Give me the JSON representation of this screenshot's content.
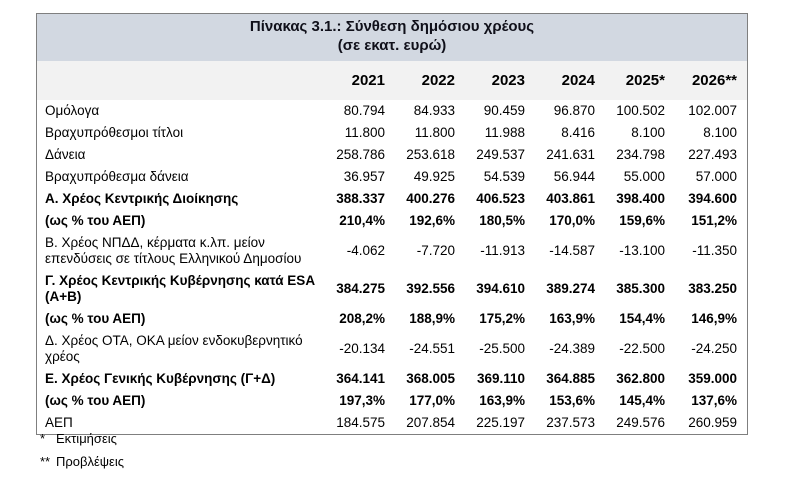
{
  "table": {
    "title_line1": "Πίνακας 3.1.: Σύνθεση δημόσιου χρέους",
    "title_line2": "(σε εκατ. ευρώ)",
    "columns": [
      "2021",
      "2022",
      "2023",
      "2024",
      "2025*",
      "2026**"
    ],
    "rows": [
      {
        "label": "Ομόλογα",
        "bold": false,
        "values": [
          "80.794",
          "84.933",
          "90.459",
          "96.870",
          "100.502",
          "102.007"
        ]
      },
      {
        "label": "Βραχυπρόθεσμοι τίτλοι",
        "bold": false,
        "values": [
          "11.800",
          "11.800",
          "11.988",
          "8.416",
          "8.100",
          "8.100"
        ]
      },
      {
        "label": "Δάνεια",
        "bold": false,
        "values": [
          "258.786",
          "253.618",
          "249.537",
          "241.631",
          "234.798",
          "227.493"
        ]
      },
      {
        "label": "Βραχυπρόθεσμα δάνεια",
        "bold": false,
        "values": [
          "36.957",
          "49.925",
          "54.539",
          "56.944",
          "55.000",
          "57.000"
        ]
      },
      {
        "label": "Α. Χρέος Κεντρικής Διοίκησης",
        "bold": true,
        "values": [
          "388.337",
          "400.276",
          "406.523",
          "403.861",
          "398.400",
          "394.600"
        ]
      },
      {
        "label": "(ως % του ΑΕΠ)",
        "bold": true,
        "values": [
          "210,4%",
          "192,6%",
          "180,5%",
          "170,0%",
          "159,6%",
          "151,2%"
        ]
      },
      {
        "label": "Β. Χρέος ΝΠΔΔ, κέρματα κ.λπ. μείον επενδύσεις σε τίτλους Ελληνικού Δημοσίου",
        "bold": false,
        "values": [
          "-4.062",
          "-7.720",
          "-11.913",
          "-14.587",
          "-13.100",
          "-11.350"
        ]
      },
      {
        "label": "Γ. Χρέος Κεντρικής Κυβέρνησης κατά ESA (Α+Β)",
        "bold": true,
        "values": [
          "384.275",
          "392.556",
          "394.610",
          "389.274",
          "385.300",
          "383.250"
        ]
      },
      {
        "label": "(ως % του ΑΕΠ)",
        "bold": true,
        "values": [
          "208,2%",
          "188,9%",
          "175,2%",
          "163,9%",
          "154,4%",
          "146,9%"
        ]
      },
      {
        "label": "Δ. Χρέος ΟΤΑ, ΟΚΑ μείον ενδοκυβερνητικό χρέος",
        "bold": false,
        "values": [
          "-20.134",
          "-24.551",
          "-25.500",
          "-24.389",
          "-22.500",
          "-24.250"
        ]
      },
      {
        "label": "Ε. Χρέος Γενικής Κυβέρνησης (Γ+Δ)",
        "bold": true,
        "values": [
          "364.141",
          "368.005",
          "369.110",
          "364.885",
          "362.800",
          "359.000"
        ]
      },
      {
        "label": "(ως % του ΑΕΠ)",
        "bold": true,
        "values": [
          "197,3%",
          "177,0%",
          "163,9%",
          "153,6%",
          "145,4%",
          "137,6%"
        ]
      },
      {
        "label": "ΑΕΠ",
        "bold": false,
        "values": [
          "184.575",
          "207.854",
          "225.197",
          "237.573",
          "249.576",
          "260.959"
        ]
      }
    ],
    "footnotes": [
      {
        "marker": "*",
        "text": "Εκτιμήσεις"
      },
      {
        "marker": "**",
        "text": "Προβλέψεις"
      }
    ],
    "colors": {
      "title_bar_bg": "#d2d8e1",
      "header_row_bg": "#f2f2f2",
      "outer_border": "#7f7f7f",
      "text": "#000000"
    }
  }
}
